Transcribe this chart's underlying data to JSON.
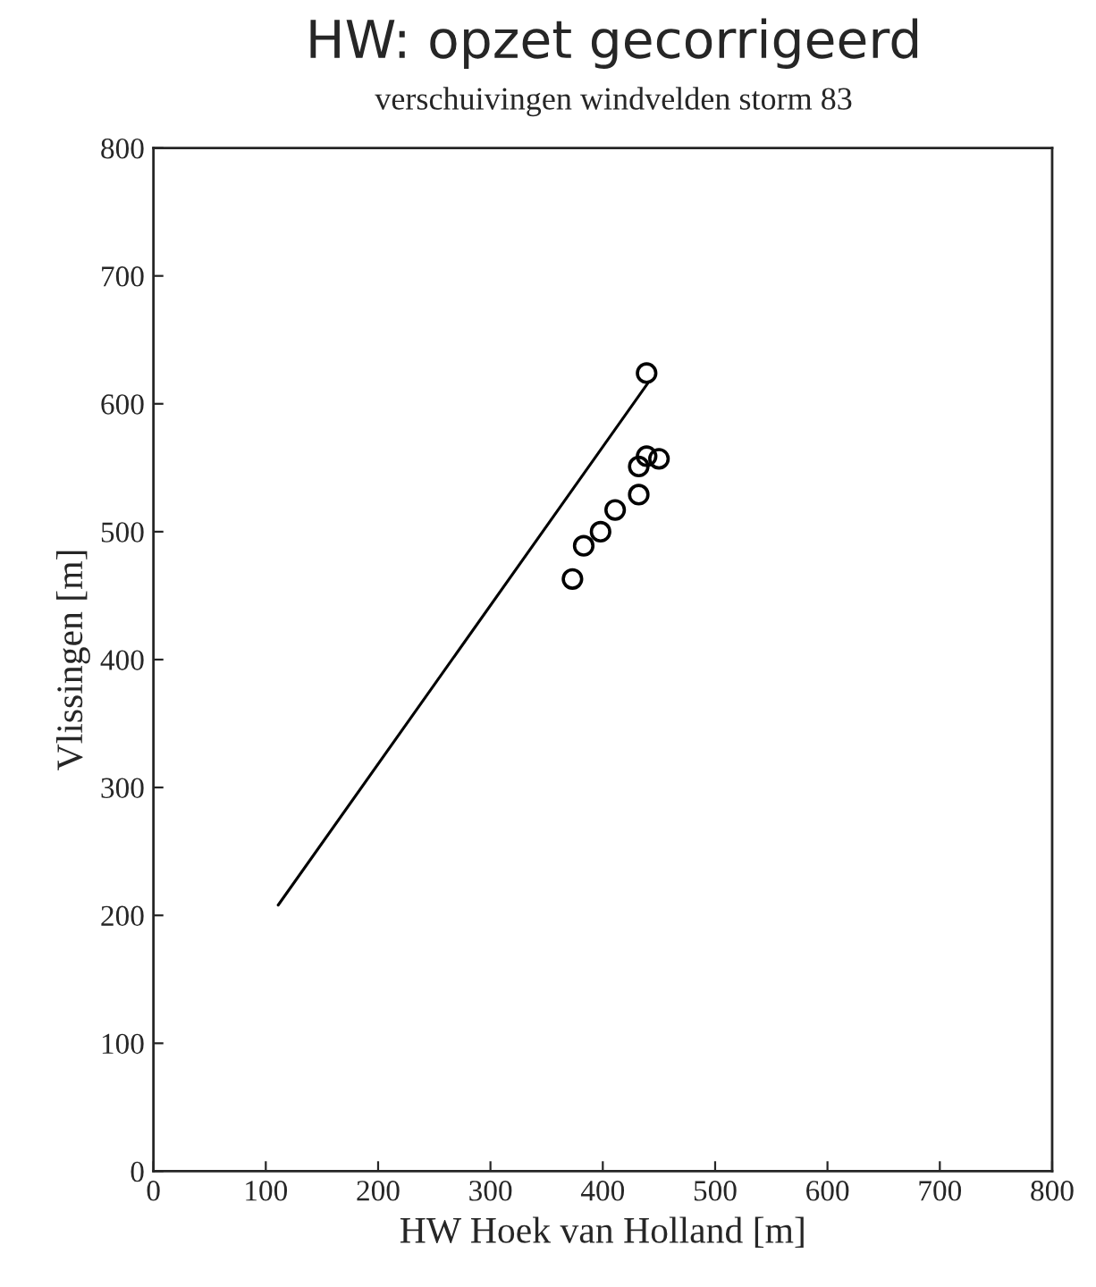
{
  "chart_data": {
    "type": "scatter",
    "title": "HW: opzet gecorrigeerd",
    "subtitle": "verschuivingen windvelden storm 83",
    "xlabel": "HW Hoek van Holland [m]",
    "ylabel": "Vlissingen [m]",
    "xlim": [
      0,
      800
    ],
    "ylim": [
      0,
      800
    ],
    "xticks": [
      0,
      100,
      200,
      300,
      400,
      500,
      600,
      700,
      800
    ],
    "yticks": [
      0,
      100,
      200,
      300,
      400,
      500,
      600,
      700,
      800
    ],
    "grid": false,
    "legend": false,
    "series": [
      {
        "color": "#000000",
        "marker": "circle",
        "x": [
          373,
          383,
          398,
          411,
          432,
          432,
          439,
          450,
          439
        ],
        "values": [
          463,
          489,
          500,
          517,
          529,
          551,
          559,
          557,
          624
        ]
      },
      {
        "type": "line",
        "color": "#000000",
        "marker": "none",
        "line_style": "solid",
        "x": [
          111,
          440
        ],
        "values": [
          208,
          616
        ]
      }
    ]
  }
}
